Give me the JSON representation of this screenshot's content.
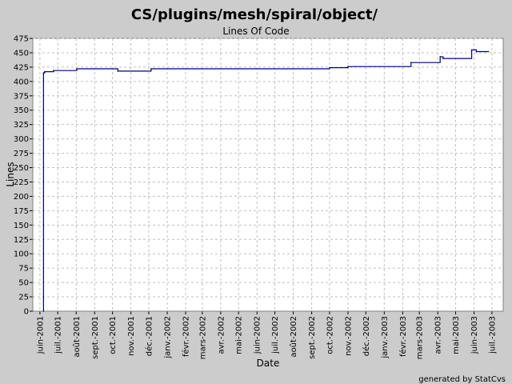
{
  "chart_data": {
    "type": "line",
    "title": "CS/plugins/mesh/spiral/object/",
    "subtitle": "Lines Of Code",
    "xlabel": "Date",
    "ylabel": "Lines",
    "ylim": [
      0,
      475
    ],
    "yticks": [
      0,
      25,
      50,
      75,
      100,
      125,
      150,
      175,
      200,
      225,
      250,
      275,
      300,
      325,
      350,
      375,
      400,
      425,
      450,
      475
    ],
    "xlim": [
      "2001-05-20",
      "2003-07-20"
    ],
    "xticks": [
      {
        "date": "2001-06-01",
        "label": "juin-2001"
      },
      {
        "date": "2001-07-01",
        "label": "juil.-2001"
      },
      {
        "date": "2001-08-01",
        "label": "août-2001"
      },
      {
        "date": "2001-09-01",
        "label": "sept.-2001"
      },
      {
        "date": "2001-10-01",
        "label": "oct.-2001"
      },
      {
        "date": "2001-11-01",
        "label": "nov.-2001"
      },
      {
        "date": "2001-12-01",
        "label": "déc.-2001"
      },
      {
        "date": "2002-01-01",
        "label": "janv.-2002"
      },
      {
        "date": "2002-02-01",
        "label": "févr.-2002"
      },
      {
        "date": "2002-03-01",
        "label": "mars-2002"
      },
      {
        "date": "2002-04-01",
        "label": "avr.-2002"
      },
      {
        "date": "2002-05-01",
        "label": "mai-2002"
      },
      {
        "date": "2002-06-01",
        "label": "juin-2002"
      },
      {
        "date": "2002-07-01",
        "label": "juil.-2002"
      },
      {
        "date": "2002-08-01",
        "label": "août-2002"
      },
      {
        "date": "2002-09-01",
        "label": "sept.-2002"
      },
      {
        "date": "2002-10-01",
        "label": "oct.-2002"
      },
      {
        "date": "2002-11-01",
        "label": "nov.-2002"
      },
      {
        "date": "2002-12-01",
        "label": "déc.-2002"
      },
      {
        "date": "2003-01-01",
        "label": "janv.-2003"
      },
      {
        "date": "2003-02-01",
        "label": "févr.-2003"
      },
      {
        "date": "2003-03-01",
        "label": "mars-2003"
      },
      {
        "date": "2003-04-01",
        "label": "avr.-2003"
      },
      {
        "date": "2003-05-01",
        "label": "mai-2003"
      },
      {
        "date": "2003-06-01",
        "label": "juin-2003"
      },
      {
        "date": "2003-07-01",
        "label": "juil.-2003"
      }
    ],
    "grid": true,
    "legend": "none",
    "line_color": "#000080",
    "step": true,
    "series": [
      {
        "points": [
          {
            "x": "2001-06-07",
            "y": 0
          },
          {
            "x": "2001-06-07",
            "y": 415
          },
          {
            "x": "2001-06-09",
            "y": 417
          },
          {
            "x": "2001-06-24",
            "y": 419
          },
          {
            "x": "2001-08-02",
            "y": 422
          },
          {
            "x": "2001-10-10",
            "y": 418
          },
          {
            "x": "2001-12-05",
            "y": 422
          },
          {
            "x": "2002-10-01",
            "y": 424
          },
          {
            "x": "2002-11-01",
            "y": 426
          },
          {
            "x": "2003-02-15",
            "y": 433
          },
          {
            "x": "2003-04-05",
            "y": 443
          },
          {
            "x": "2003-04-10",
            "y": 440
          },
          {
            "x": "2003-05-28",
            "y": 455
          },
          {
            "x": "2003-06-05",
            "y": 452
          },
          {
            "x": "2003-06-25",
            "y": 452
          }
        ]
      }
    ]
  },
  "footer": "generated by StatCvs"
}
